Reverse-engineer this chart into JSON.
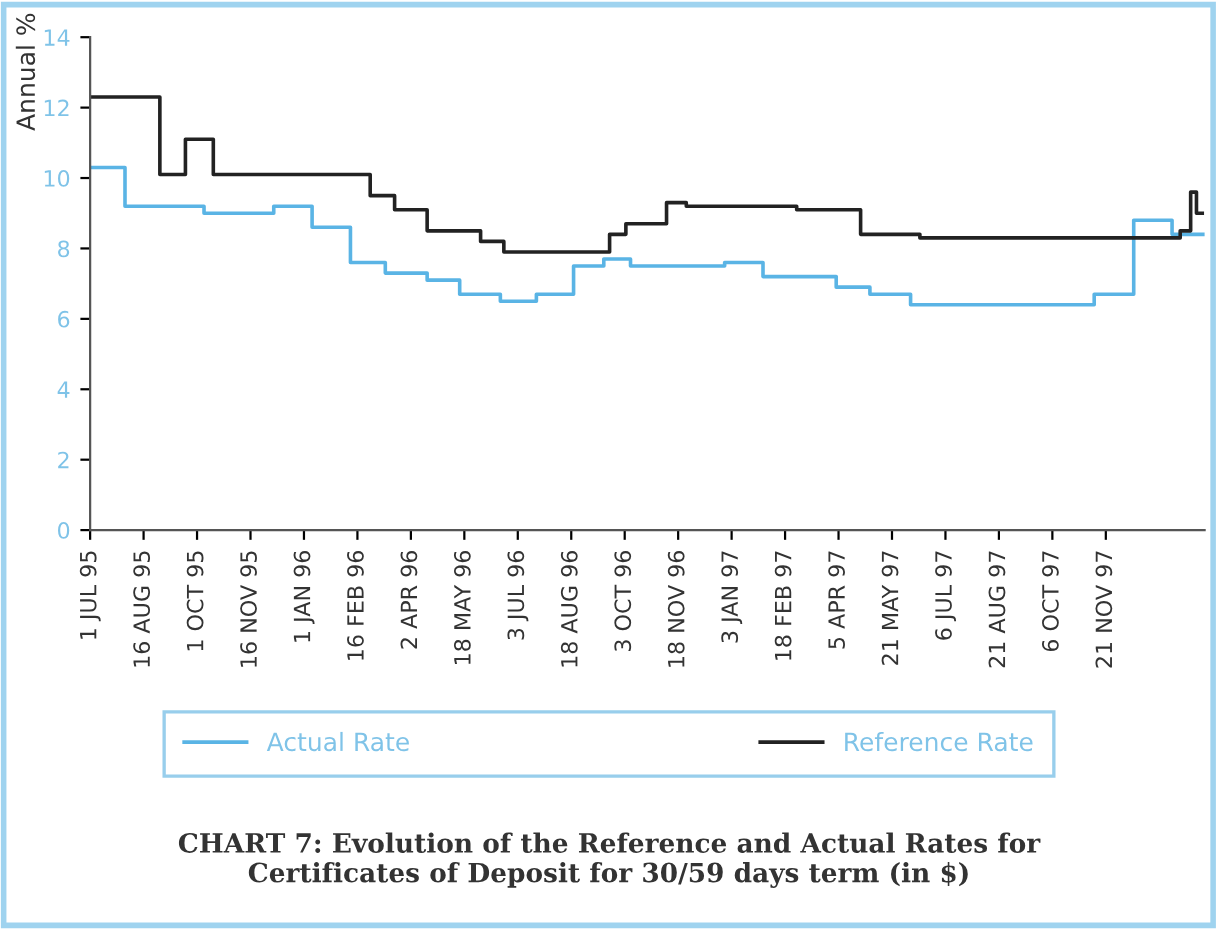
{
  "chart_data": {
    "type": "step",
    "title": "CHART 7: Evolution of the Reference and Actual Rates for\nCertificates of Deposit for 30/59 days term (in $)",
    "ylabel": "Annual %",
    "series": [
      {
        "name": "Actual Rate",
        "color": "#5ab4e5",
        "x": [
          "1995-07-01",
          "1995-07-31",
          "1995-10-07",
          "1995-12-06",
          "1996-01-08",
          "1996-02-10",
          "1996-03-11",
          "1996-04-16",
          "1996-05-14",
          "1996-06-18",
          "1996-07-19",
          "1996-08-20",
          "1996-09-15",
          "1996-10-08",
          "1996-12-28",
          "1997-01-30",
          "1997-04-03",
          "1997-05-02",
          "1997-06-06",
          "1997-11-11",
          "1997-12-15",
          "1998-01-17",
          "1998-02-13"
        ],
        "values": [
          10.3,
          9.2,
          9.0,
          9.2,
          8.6,
          7.6,
          7.3,
          7.1,
          6.7,
          6.5,
          6.7,
          7.5,
          7.7,
          7.5,
          7.6,
          7.2,
          6.9,
          6.7,
          6.4,
          6.7,
          8.8,
          8.4,
          8.4
        ]
      },
      {
        "name": "Reference Rate",
        "color": "#222222",
        "x": [
          "1995-07-01",
          "1995-08-30",
          "1995-09-21",
          "1995-10-15",
          "1996-02-27",
          "1996-03-19",
          "1996-04-16",
          "1996-06-01",
          "1996-06-21",
          "1996-09-20",
          "1996-10-04",
          "1996-11-08",
          "1996-11-25",
          "1997-02-28",
          "1997-04-24",
          "1997-06-14",
          "1998-01-24",
          "1998-02-02",
          "1998-02-07",
          "1998-02-12"
        ],
        "values": [
          12.3,
          10.1,
          11.1,
          10.1,
          9.5,
          9.1,
          8.5,
          8.2,
          7.9,
          8.4,
          8.7,
          9.3,
          9.2,
          9.1,
          8.4,
          8.3,
          8.5,
          9.6,
          9.0,
          9.0
        ]
      }
    ],
    "xlim": [
      "1995-07-01",
      "1998-02-14"
    ],
    "xticks": [
      {
        "value": "1995-07-01",
        "label": "1 JUL 95"
      },
      {
        "value": "1995-08-16",
        "label": "16 AUG 95"
      },
      {
        "value": "1995-10-01",
        "label": "1 OCT 95"
      },
      {
        "value": "1995-11-16",
        "label": "16 NOV 95"
      },
      {
        "value": "1996-01-01",
        "label": "1 JAN 96"
      },
      {
        "value": "1996-02-16",
        "label": "16 FEB 96"
      },
      {
        "value": "1996-04-02",
        "label": "2 APR 96"
      },
      {
        "value": "1996-05-18",
        "label": "18 MAY 96"
      },
      {
        "value": "1996-07-03",
        "label": "3 JUL 96"
      },
      {
        "value": "1996-08-18",
        "label": "18 AUG 96"
      },
      {
        "value": "1996-10-03",
        "label": "3 OCT 96"
      },
      {
        "value": "1996-11-18",
        "label": "18 NOV 96"
      },
      {
        "value": "1997-01-03",
        "label": "3 JAN 97"
      },
      {
        "value": "1997-02-18",
        "label": "18 FEB 97"
      },
      {
        "value": "1997-04-05",
        "label": "5 APR 97"
      },
      {
        "value": "1997-05-21",
        "label": "21 MAY 97"
      },
      {
        "value": "1997-07-06",
        "label": "6 JUL 97"
      },
      {
        "value": "1997-08-21",
        "label": "21 AUG 97"
      },
      {
        "value": "1997-10-06",
        "label": "6 OCT 97"
      },
      {
        "value": "1997-11-21",
        "label": "21 NOV 97"
      }
    ],
    "ylim": [
      0,
      14
    ],
    "yticks": [
      0,
      2,
      4,
      6,
      8,
      10,
      12,
      14
    ],
    "legend": "bottom",
    "grid": false,
    "line_style": "solid",
    "marker": "none"
  }
}
